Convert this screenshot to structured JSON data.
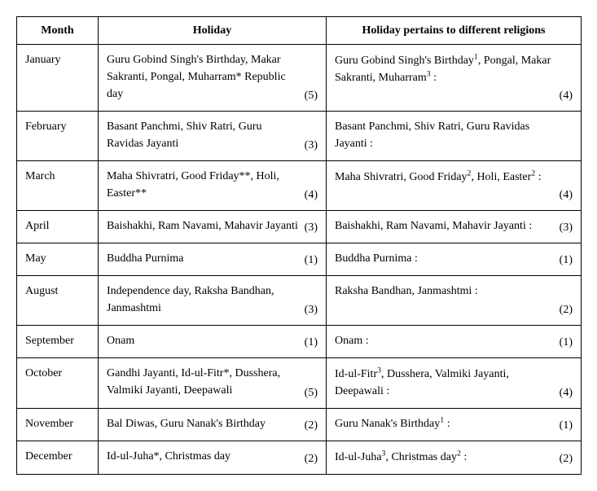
{
  "columns": {
    "month": "Month",
    "holiday": "Holiday",
    "religion": "Holiday pertains to different religions"
  },
  "col_widths": {
    "month": 100,
    "holiday": 280,
    "religion": 313
  },
  "rows": [
    {
      "month": "January",
      "holiday": "Guru Gobind Singh's Birthday, Makar Sakranti, Pongal, Muharram* Republic day",
      "holiday_count": "(5)",
      "religion": "Guru Gobind Singh's Birthday<sup>1</sup>, Pongal, Makar Sakranti, Muharram<sup>3</sup> :",
      "religion_count": "(4)"
    },
    {
      "month": "February",
      "holiday": "Basant Panchmi, Shiv Ratri, Guru Ravidas Jayanti",
      "holiday_count": "(3)",
      "religion": "Basant Panchmi, Shiv Ratri, Guru Ravidas Jayanti :",
      "religion_count": ""
    },
    {
      "month": "March",
      "holiday": "Maha Shivratri, Good Friday**, Holi, Easter**",
      "holiday_count": "(4)",
      "religion": "Maha Shivratri, Good Friday<sup>2</sup>, Holi, Easter<sup>2</sup> :",
      "religion_count": "(4)"
    },
    {
      "month": "April",
      "holiday": "Baishakhi, Ram Navami, Mahavir Jayanti",
      "holiday_count": "(3)",
      "religion": "Baishakhi, Ram Navami, Mahavir Jayanti :",
      "religion_count": "(3)"
    },
    {
      "month": "May",
      "holiday": "Buddha Purnima",
      "holiday_count": "(1)",
      "religion": "Buddha Purnima :",
      "religion_count": "(1)"
    },
    {
      "month": "August",
      "holiday": "Independence day, Raksha Bandhan, Janmashtmi",
      "holiday_count": "(3)",
      "religion": "Raksha Bandhan, Janmashtmi :",
      "religion_count": "(2)"
    },
    {
      "month": "September",
      "holiday": "Onam",
      "holiday_count": "(1)",
      "religion": "Onam :",
      "religion_count": "(1)"
    },
    {
      "month": "October",
      "holiday": "Gandhi Jayanti, Id-ul-Fitr*, Dusshera, Valmiki Jayanti, Deepawali",
      "holiday_count": "(5)",
      "religion": "Id-ul-Fitr<sup>3</sup>, Dusshera, Valmiki Jayanti, Deepawali :",
      "religion_count": "(4)"
    },
    {
      "month": "November",
      "holiday": "Bal Diwas, Guru Nanak's Birthday",
      "holiday_count": "(2)",
      "religion": "Guru Nanak's Birthday<sup>1</sup> :",
      "religion_count": "(1)"
    },
    {
      "month": "December",
      "holiday": "Id-ul-Juha*, Christmas day",
      "holiday_count": "(2)",
      "religion": "Id-ul-Juha<sup>3</sup>, Christmas day<sup>2</sup> :",
      "religion_count": "(2)"
    }
  ]
}
